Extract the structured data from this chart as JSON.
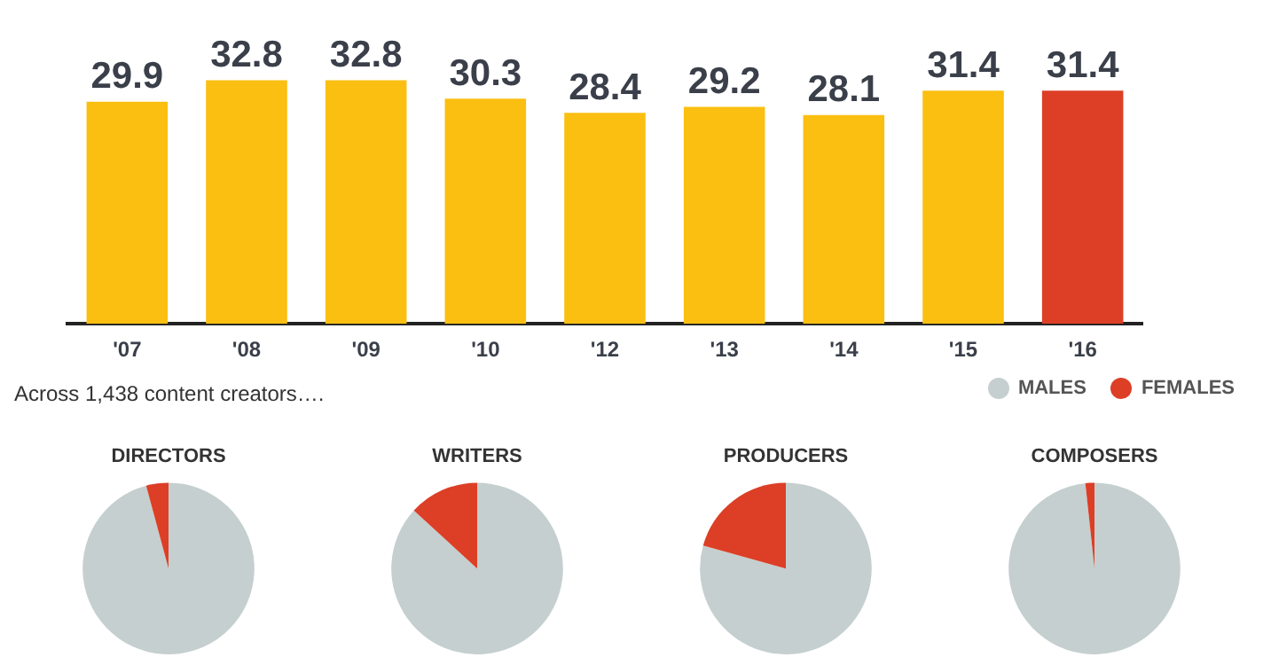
{
  "chart_data": [
    {
      "type": "bar",
      "categories": [
        "'07",
        "'08",
        "'09",
        "'10",
        "'12",
        "'13",
        "'14",
        "'15",
        "'16"
      ],
      "values": [
        29.9,
        32.8,
        32.8,
        30.3,
        28.4,
        29.2,
        28.1,
        31.4,
        31.4
      ],
      "colors": [
        "#fbbf12",
        "#fbbf12",
        "#fbbf12",
        "#fbbf12",
        "#fbbf12",
        "#fbbf12",
        "#fbbf12",
        "#fbbf12",
        "#dc3f26"
      ],
      "data_labels": true,
      "tick_labels": "x",
      "grid": false
    },
    {
      "type": "pie",
      "title": "DIRECTORS",
      "annotations": [
        "Across 1,438 content creators…."
      ],
      "categories": [
        null,
        null
      ],
      "values": [
        95.8,
        4.2
      ],
      "colors": [
        "#c5cfcf",
        "#dc3f26"
      ]
    },
    {
      "type": "pie",
      "title": "WRITERS",
      "categories": [
        null,
        null
      ],
      "values": [
        86.8,
        13.2
      ],
      "colors": [
        "#c5cfcf",
        "#dc3f26"
      ]
    },
    {
      "type": "pie",
      "title": "PRODUCERS",
      "categories": [
        null,
        null
      ],
      "values": [
        79.3,
        20.7
      ],
      "colors": [
        "#c5cfcf",
        "#dc3f26"
      ]
    },
    {
      "type": "pie",
      "title": "COMPOSERS",
      "categories": [
        "MALES",
        "FEMALES"
      ],
      "values": [
        98.3,
        1.7
      ],
      "colors": [
        "#c5cfcf",
        "#dc3f26"
      ],
      "legend": "top right"
    }
  ]
}
